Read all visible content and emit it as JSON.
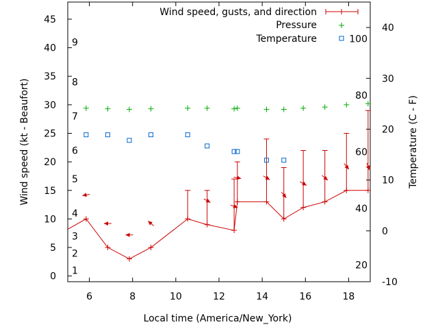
{
  "chart_data": {
    "type": "line",
    "title": "",
    "xlabel": "Local time (America/New_York)",
    "ylabel": "Wind speed (kt - Beaufort)",
    "y2label": "Temperature (C - F)",
    "xlim": [
      5,
      19
    ],
    "ylim": [
      -1,
      48
    ],
    "y2lim": [
      -10,
      45
    ],
    "x_ticks": [
      6,
      8,
      10,
      12,
      14,
      16,
      18
    ],
    "y_ticks": [
      0,
      5,
      10,
      15,
      20,
      25,
      30,
      35,
      40,
      45
    ],
    "y2_ticks": [
      -10,
      0,
      10,
      20,
      30,
      40
    ],
    "beaufort_labels": [
      {
        "label": "1",
        "y": 1
      },
      {
        "label": "2",
        "y": 4
      },
      {
        "label": "3",
        "y": 7
      },
      {
        "label": "4",
        "y": 11
      },
      {
        "label": "5",
        "y": 17
      },
      {
        "label": "6",
        "y": 22
      },
      {
        "label": "7",
        "y": 28
      },
      {
        "label": "8",
        "y": 34
      },
      {
        "label": "9",
        "y": 41
      }
    ],
    "fahrenheit_labels": [
      {
        "label": "20",
        "c": -6.67
      },
      {
        "label": "40",
        "c": 4.44
      },
      {
        "label": "60",
        "c": 15.56
      },
      {
        "label": "80",
        "c": 26.67
      },
      {
        "label": "100",
        "c": 37.78
      }
    ],
    "legend_position": "top-right",
    "series": [
      {
        "name": "Wind speed, gusts, and direction",
        "color": "#cc0000",
        "marker": "plus-line",
        "x": [
          5.0,
          5.85,
          6.85,
          7.85,
          8.85,
          10.55,
          11.45,
          12.7,
          12.85,
          14.2,
          15.0,
          15.9,
          16.9,
          17.9,
          18.9
        ],
        "y": [
          8.2,
          10,
          5,
          3,
          5,
          10,
          9,
          8,
          13,
          13,
          10,
          12,
          13,
          15,
          15
        ],
        "gusts": [
          null,
          null,
          null,
          null,
          null,
          15,
          15,
          17,
          20,
          24,
          19,
          22,
          22,
          25,
          29
        ],
        "direction_deg": [
          null,
          80,
          90,
          90,
          130,
          null,
          300,
          290,
          280,
          300,
          320,
          300,
          310,
          320,
          340
        ]
      },
      {
        "name": "Pressure",
        "color": "#00aa00",
        "marker": "plus",
        "x": [
          5.85,
          6.85,
          7.85,
          8.85,
          10.55,
          11.45,
          12.7,
          12.85,
          14.2,
          15.0,
          15.9,
          16.9,
          17.9,
          18.9
        ],
        "y": [
          29.4,
          29.3,
          29.2,
          29.3,
          29.4,
          29.4,
          29.3,
          29.4,
          29.2,
          29.2,
          29.4,
          29.6,
          30.0,
          30.2
        ]
      },
      {
        "name": "Temperature",
        "color": "#0066cc",
        "marker": "square",
        "x": [
          5.85,
          6.85,
          7.85,
          8.85,
          10.55,
          11.45,
          12.7,
          12.85,
          14.2,
          15.0
        ],
        "y": [
          18.9,
          18.9,
          17.8,
          18.9,
          18.9,
          16.7,
          15.6,
          15.6,
          13.9,
          13.9
        ]
      }
    ]
  }
}
